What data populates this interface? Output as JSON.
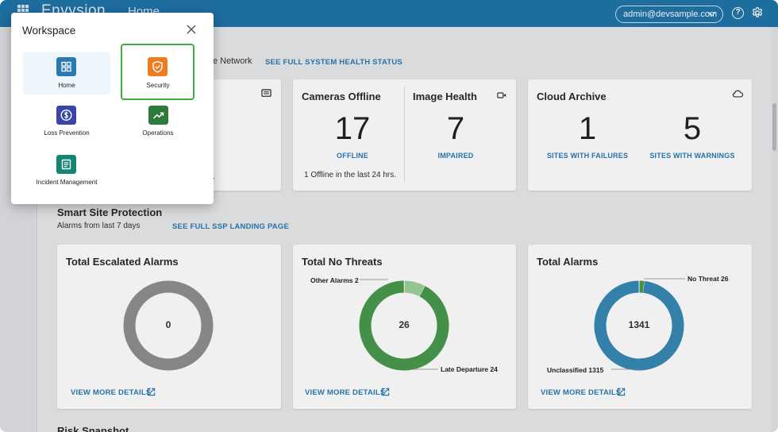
{
  "topbar": {
    "brand": "Envysion",
    "nav_home": "Home",
    "user_email": "admin@devsample.com",
    "help_glyph": "?",
    "icons": [
      "apps-grid-icon",
      "chevron-down-icon",
      "help-icon",
      "gear-icon"
    ]
  },
  "system_health": {
    "network_label": "e Network",
    "link": "SEE FULL SYSTEM HEALTH STATUS",
    "partial_note": "."
  },
  "cameras_offline": {
    "title": "Cameras Offline",
    "value": "17",
    "link": "OFFLINE",
    "note": "1 Offline in the last 24 hrs."
  },
  "image_health": {
    "title": "Image Health",
    "value": "7",
    "link": "IMPAIRED"
  },
  "cloud_archive": {
    "title": "Cloud Archive",
    "failures_value": "1",
    "failures_link": "SITES WITH FAILURES",
    "warnings_value": "5",
    "warnings_link": "SITES WITH WARNINGS"
  },
  "ssp": {
    "title": "Smart Site Protection",
    "subtitle": "Alarms from last 7 days",
    "link": "SEE FULL SSP LANDING PAGE"
  },
  "escalated": {
    "title": "Total Escalated Alarms",
    "center": "0",
    "view_more": "VIEW MORE DETAILS"
  },
  "no_threats": {
    "title": "Total No Threats",
    "center": "26",
    "callout_other": "Other Alarms 2",
    "callout_late": "Late Departure 24",
    "view_more": "VIEW MORE DETAILS"
  },
  "total_alarms": {
    "title": "Total Alarms",
    "center": "1341",
    "callout_nothreat": "No Threat 26",
    "callout_unclassified": "Unclassified 1315",
    "view_more": "VIEW MORE DETAILS"
  },
  "bottom_section": {
    "title": "Risk Snapshot"
  },
  "workspace": {
    "title": "Workspace",
    "items": [
      {
        "label": "Home",
        "icon": "home-dashboard-icon",
        "color": "#2a7ab2"
      },
      {
        "label": "Security",
        "icon": "shield-check-icon",
        "color": "#f07c22"
      },
      {
        "label": "Loss Prevention",
        "icon": "dollar-circle-icon",
        "color": "#3b45a8"
      },
      {
        "label": "Operations",
        "icon": "trending-up-icon",
        "color": "#2f7a3a"
      },
      {
        "label": "Incident Management",
        "icon": "document-list-icon",
        "color": "#128574"
      }
    ]
  },
  "chart_data": [
    {
      "type": "pie",
      "title": "Total Escalated Alarms",
      "labels": [],
      "values": [],
      "center_total": 0
    },
    {
      "type": "pie",
      "title": "Total No Threats",
      "labels": [
        "Late Departure",
        "Other Alarms"
      ],
      "values": [
        24,
        2
      ],
      "colors": [
        "#4a9a4e",
        "#9fd19d"
      ],
      "center_total": 26
    },
    {
      "type": "pie",
      "title": "Total Alarms",
      "labels": [
        "Unclassified",
        "No Threat"
      ],
      "values": [
        1315,
        26
      ],
      "colors": [
        "#3788b5",
        "#4a9a4e"
      ],
      "center_total": 1341
    }
  ]
}
